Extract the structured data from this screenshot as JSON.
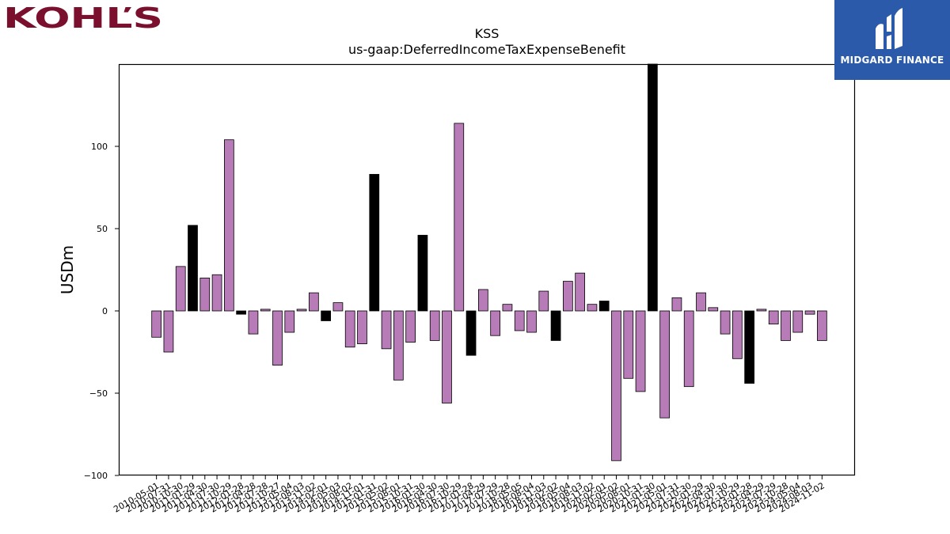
{
  "brand_left": {
    "text": "KOHĽS",
    "color": "#7a0f2e"
  },
  "brand_right": {
    "text": "MIDGARD FINANCE",
    "bg": "#2a5aa9",
    "color": "#ffffff"
  },
  "chart_data": {
    "type": "bar",
    "title": "KSS",
    "subtitle": "us-gaap:DeferredIncomeTaxExpenseBenefit",
    "ylabel": "USDm",
    "xlabel": "",
    "ylim": [
      -100,
      150
    ],
    "yticks": [
      -100,
      -50,
      0,
      50,
      100
    ],
    "ytick_labels": [
      "−100",
      "−50",
      "0",
      "50",
      "100"
    ],
    "grid": false,
    "colors": {
      "quarter": "#b77bb8",
      "annual": "#000000",
      "edge": "#000000"
    },
    "categories": [
      "2010-05-01",
      "2010-07-31",
      "2010-10-30",
      "2011-01-29",
      "2011-04-30",
      "2011-07-30",
      "2011-10-29",
      "2012-01-28",
      "2012-04-28",
      "2012-07-28",
      "2012-10-27",
      "2013-05-04",
      "2013-08-03",
      "2013-11-02",
      "2014-02-01",
      "2014-05-03",
      "2014-08-02",
      "2014-11-01",
      "2015-01-31",
      "2015-05-02",
      "2015-08-01",
      "2015-10-31",
      "2016-01-30",
      "2016-04-30",
      "2016-07-30",
      "2016-10-29",
      "2017-01-28",
      "2017-04-29",
      "2017-07-29",
      "2017-10-28",
      "2018-05-05",
      "2018-08-04",
      "2018-11-03",
      "2019-02-02",
      "2019-05-04",
      "2019-08-03",
      "2019-11-02",
      "2020-02-01",
      "2020-05-02",
      "2020-08-01",
      "2020-10-31",
      "2021-01-30",
      "2021-05-01",
      "2021-07-31",
      "2021-10-30",
      "2022-01-29",
      "2022-04-30",
      "2022-07-30",
      "2022-10-29",
      "2023-01-28",
      "2023-04-29",
      "2023-07-29",
      "2023-10-28",
      "2024-05-04",
      "2024-08-03",
      "2024-11-02"
    ],
    "tick_labels": [
      "2010-05-01",
      "2010-07-31",
      "2010-10-30",
      "2011-01-29",
      "2011-04-30",
      "2011-07-30",
      "2011-10-29",
      "2012-01-28",
      "2012-04-28",
      "2012-07-28",
      "2012-10-27",
      "2013-05-04",
      "2013-08-03",
      "2013-11-02",
      "2014-02-01",
      "2014-05-03",
      "2014-08-02",
      "2014-11-01",
      "2015-01-31",
      "2015-05-02",
      "2015-08-01",
      "2015-10-31",
      "2016-01-30",
      "2016-04-30",
      "2016-07-30",
      "2016-10-29",
      "2017-01-28",
      "2017-04-29",
      "2017-07-29",
      "2017-10-28",
      "2018-05-05",
      "2018-08-04",
      "2018-11-03",
      "2019-02-02",
      "2019-05-04",
      "2019-08-03",
      "2019-11-02",
      "2020-02-01",
      "2020-05-02",
      "2020-08-01",
      "2020-10-31",
      "2021-01-30",
      "2021-05-01",
      "2021-07-31",
      "2021-10-30",
      "2022-01-29",
      "2022-04-30",
      "2022-07-30",
      "2022-10-29",
      "2023-01-28",
      "2023-04-29",
      "2023-07-29",
      "2023-10-28",
      "2024-05-04",
      "2024-08-03",
      "2024-11-02"
    ],
    "values": [
      -16,
      -25,
      27,
      52,
      20,
      22,
      104,
      -2,
      -14,
      1,
      -33,
      -13,
      1,
      11,
      -6,
      5,
      -22,
      -20,
      83,
      -23,
      -42,
      -19,
      46,
      -18,
      -56,
      114,
      -27,
      13,
      -15,
      4,
      -12,
      -13,
      12,
      -18,
      18,
      23,
      4,
      6,
      -91,
      -41,
      -49,
      150,
      -65,
      8,
      -46,
      11,
      2,
      -14,
      -29,
      -44,
      1,
      -8,
      -18,
      -13,
      -2,
      -18
    ],
    "annual": [
      false,
      false,
      false,
      true,
      false,
      false,
      false,
      true,
      false,
      false,
      false,
      false,
      false,
      false,
      true,
      false,
      false,
      false,
      true,
      false,
      false,
      false,
      true,
      false,
      false,
      false,
      true,
      false,
      false,
      false,
      false,
      false,
      false,
      true,
      false,
      false,
      false,
      true,
      false,
      false,
      false,
      true,
      false,
      false,
      false,
      false,
      false,
      false,
      false,
      true,
      false,
      false,
      false,
      false,
      false,
      false
    ]
  }
}
